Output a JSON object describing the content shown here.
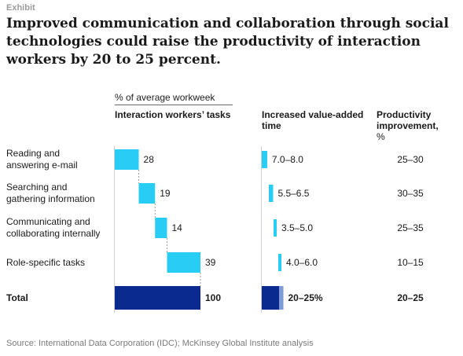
{
  "exhibit": "Exhibit",
  "title": "Improved communication and collaboration through social technologies could raise the productivity of interaction workers by 20 to 25 percent.",
  "subheader": "% of average workweek",
  "columns": {
    "tasks": "Interaction workers’ tasks",
    "value_added": "Increased value-added time",
    "productivity": "Productivity improvement,",
    "productivity_unit": "%"
  },
  "colors": {
    "light_bar": "#27cdf5",
    "dark_bar": "#0a2a8f",
    "total_accent": "#7f9bd6"
  },
  "source": "Source: International Data Corporation (IDC); McKinsey Global Institute analysis",
  "chart_data": {
    "type": "bar",
    "subtype": "waterfall_with_ranges",
    "categories": [
      "Reading and answering e-mail",
      "Searching and gathering information",
      "Communicating and collaborating internally",
      "Role-specific tasks",
      "Total"
    ],
    "category_lines": [
      [
        "Reading and",
        "answering e-mail"
      ],
      [
        "Searching and",
        "gathering information"
      ],
      [
        "Communicating and",
        "collaborating internally"
      ],
      [
        "Role-specific tasks"
      ],
      [
        "Total"
      ]
    ],
    "task_share": [
      28,
      19,
      14,
      39,
      100
    ],
    "task_share_labels": [
      "28",
      "19",
      "14",
      "39",
      "100"
    ],
    "value_added_time": [
      [
        7.0,
        8.0
      ],
      [
        5.5,
        6.5
      ],
      [
        3.5,
        5.0
      ],
      [
        4.0,
        6.0
      ],
      [
        20,
        25
      ]
    ],
    "value_added_labels": [
      "7.0–8.0",
      "5.5–6.5",
      "3.5–5.0",
      "4.0–6.0",
      "20–25%"
    ],
    "productivity_improvement": [
      "25–30",
      "30–35",
      "25–35",
      "10–15",
      "20–25"
    ],
    "legend": "none",
    "grid": false
  }
}
